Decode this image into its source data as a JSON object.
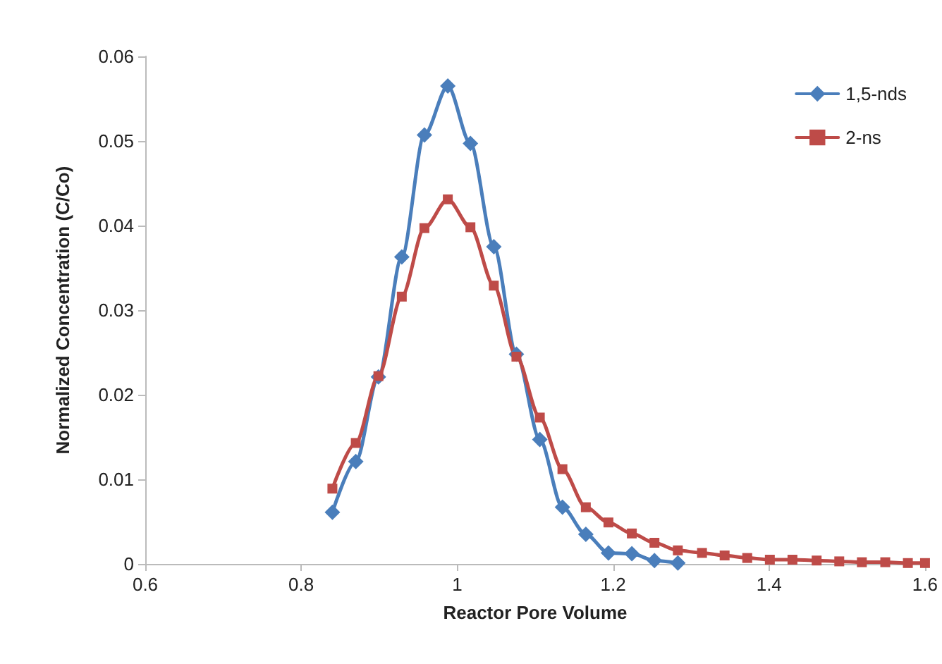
{
  "chart_data": {
    "type": "line",
    "xlabel": "Reactor Pore Volume",
    "ylabel": "Normalized Concentration (C/Co)",
    "xlim": [
      0.6,
      1.6
    ],
    "xticks": [
      0.6,
      0.8,
      1,
      1.2,
      1.4,
      1.6
    ],
    "ylim": [
      0,
      0.06
    ],
    "yticks": [
      0,
      0.01,
      0.02,
      0.03,
      0.04,
      0.05,
      0.06
    ],
    "grid": false,
    "legend": "top right",
    "series": [
      {
        "name": "1,5-nds",
        "color": "#4a7ebb",
        "marker": "diamond",
        "x": [
          0.84,
          0.87,
          0.899,
          0.929,
          0.958,
          0.988,
          1.017,
          1.047,
          1.076,
          1.106,
          1.135,
          1.165,
          1.194,
          1.224,
          1.253,
          1.283
        ],
        "values": [
          0.0061,
          0.0121,
          0.0221,
          0.0363,
          0.0507,
          0.0565,
          0.0497,
          0.0375,
          0.0248,
          0.0147,
          0.0067,
          0.0035,
          0.0013,
          0.0012,
          0.0004,
          0.0001
        ]
      },
      {
        "name": "2-ns",
        "color": "#be4b48",
        "marker": "square",
        "x": [
          0.84,
          0.87,
          0.899,
          0.929,
          0.958,
          0.988,
          1.017,
          1.047,
          1.076,
          1.106,
          1.135,
          1.165,
          1.194,
          1.224,
          1.253,
          1.283,
          1.314,
          1.343,
          1.372,
          1.401,
          1.43,
          1.461,
          1.49,
          1.519,
          1.549,
          1.578,
          1.6
        ],
        "values": [
          0.0089,
          0.0143,
          0.0222,
          0.0316,
          0.0397,
          0.0431,
          0.0398,
          0.0329,
          0.0245,
          0.0173,
          0.0112,
          0.0067,
          0.0049,
          0.0036,
          0.0025,
          0.0016,
          0.0013,
          0.001,
          0.0007,
          0.0005,
          0.0005,
          0.0004,
          0.0003,
          0.0002,
          0.0002,
          0.0001,
          0.0001
        ]
      }
    ]
  }
}
